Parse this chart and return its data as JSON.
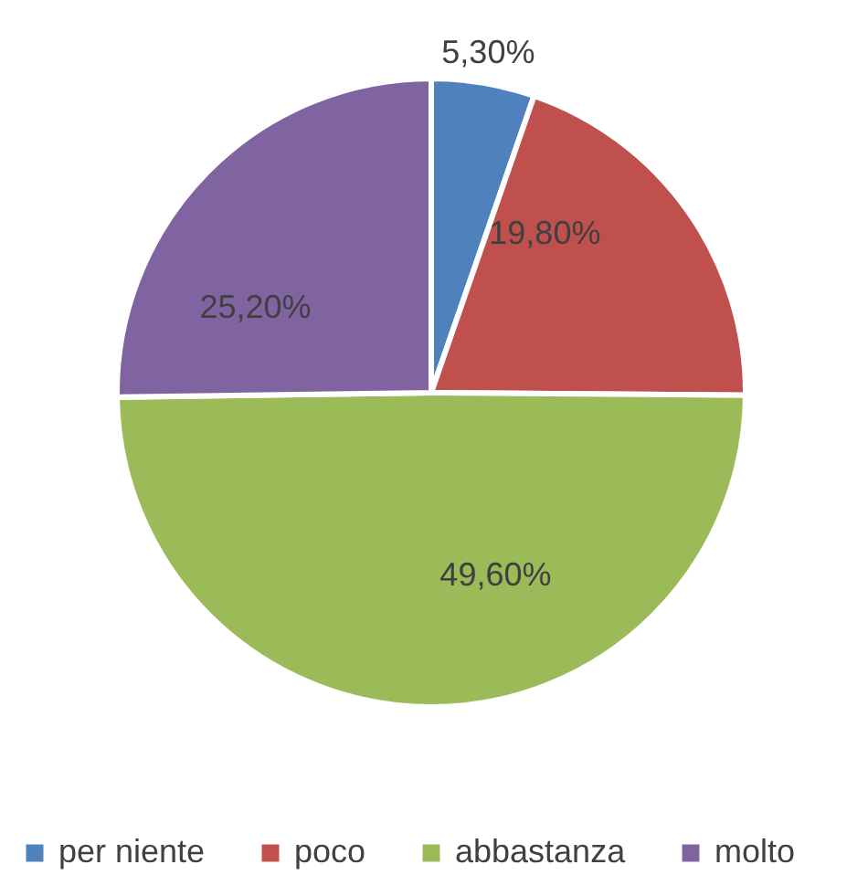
{
  "chart_data": {
    "type": "pie",
    "categories": [
      "per niente",
      "poco",
      "abbastanza",
      "molto"
    ],
    "values": [
      5.3,
      19.8,
      49.6,
      25.2
    ],
    "value_labels": [
      "5,30%",
      "19,80%",
      "49,60%",
      "25,20%"
    ],
    "colors": [
      "#4f81bd",
      "#c0504d",
      "#9bbb59",
      "#8064a2"
    ],
    "legend": "bottom"
  }
}
